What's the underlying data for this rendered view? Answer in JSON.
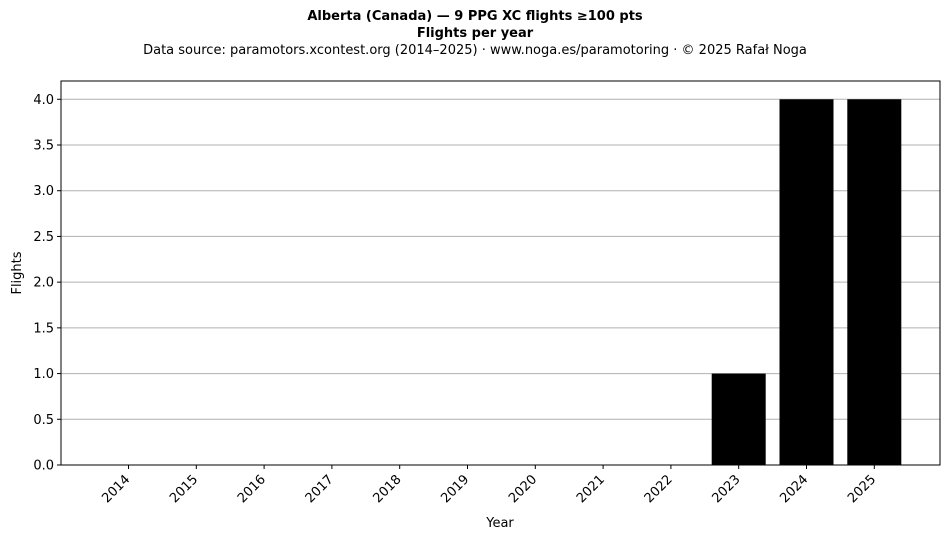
{
  "header": {
    "title": "Alberta (Canada)  —  9 PPG XC flights ≥100 pts",
    "subtitle": "Flights per year",
    "source": "Data source: paramotors.xcontest.org (2014–2025)  ·  www.noga.es/paramotoring  ·  © 2025 Rafał Noga"
  },
  "chart_data": {
    "type": "bar",
    "title": "Alberta (Canada)  —  9 PPG XC flights ≥100 pts",
    "subtitle": "Flights per year",
    "xlabel": "Year",
    "ylabel": "Flights",
    "categories": [
      "2014",
      "2015",
      "2016",
      "2017",
      "2018",
      "2019",
      "2020",
      "2021",
      "2022",
      "2023",
      "2024",
      "2025"
    ],
    "values": [
      0,
      0,
      0,
      0,
      0,
      0,
      0,
      0,
      0,
      1,
      4,
      4
    ],
    "ylim": [
      0,
      4.2
    ],
    "yticks": [
      "0.0",
      "0.5",
      "1.0",
      "1.5",
      "2.0",
      "2.5",
      "3.0",
      "3.5",
      "4.0"
    ],
    "grid": "horizontal",
    "bar_color": "#000000",
    "grid_color": "#b0b0b0"
  }
}
